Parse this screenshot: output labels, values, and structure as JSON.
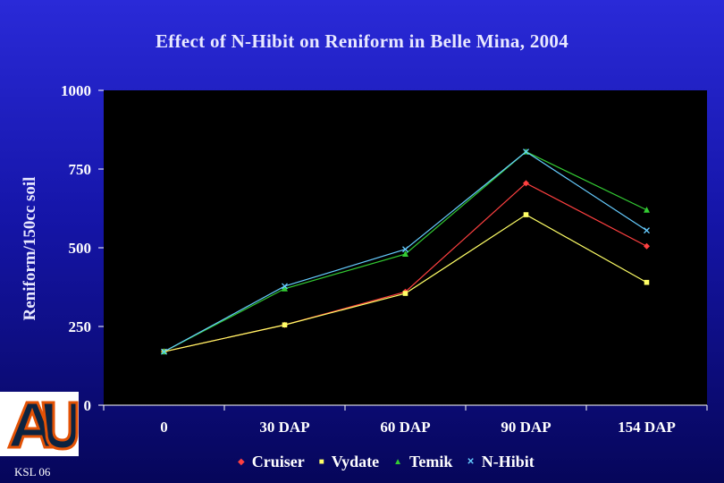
{
  "chart_data": {
    "type": "line",
    "title": "Effect of N-Hibit on Reniform in Belle Mina, 2004",
    "ylabel": "Reniform/150cc soil",
    "xlabel": "",
    "categories": [
      "0",
      "30 DAP",
      "60 DAP",
      "90 DAP",
      "154 DAP"
    ],
    "ylim": [
      0,
      1000
    ],
    "yticks": [
      "0",
      "250",
      "500",
      "750",
      "1000"
    ],
    "legend_position": "bottom",
    "series": [
      {
        "name": "Cruiser",
        "marker": "diamond",
        "color": "#ff4040",
        "values": [
          170,
          255,
          360,
          705,
          505
        ]
      },
      {
        "name": "Vydate",
        "marker": "square",
        "color": "#ffff66",
        "values": [
          170,
          255,
          355,
          605,
          390
        ]
      },
      {
        "name": "Temik",
        "marker": "triangle",
        "color": "#33cc33",
        "values": [
          170,
          370,
          480,
          805,
          620
        ]
      },
      {
        "name": "N-Hibit",
        "marker": "x",
        "color": "#66ccff",
        "values": [
          170,
          378,
          495,
          805,
          555
        ]
      }
    ]
  },
  "footer": "KSL 06",
  "logo": {
    "text": "AU",
    "color": "#e35205"
  }
}
